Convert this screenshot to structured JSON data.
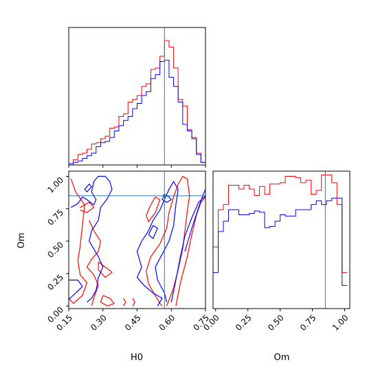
{
  "chart_data": {
    "type": "corner",
    "colors": {
      "red": "#ff0000",
      "blue": "#0000ff",
      "truth": "#1f77b4"
    },
    "truths": {
      "H0": 0.57,
      "Om": 0.85
    },
    "axes": {
      "H0": {
        "label": "H0",
        "range": [
          0.15,
          0.75
        ],
        "ticks": [
          "0.15",
          "0.30",
          "0.45",
          "0.60",
          "0.75"
        ],
        "tick_values": [
          0.15,
          0.3,
          0.45,
          0.6,
          0.75
        ]
      },
      "Om": {
        "label": "Om",
        "range": [
          -0.02,
          1.04
        ],
        "ticks": [
          "0.00",
          "0.25",
          "0.50",
          "0.75",
          "1.00"
        ],
        "tick_values": [
          0.0,
          0.25,
          0.5,
          0.75,
          1.0
        ]
      }
    },
    "hist_H0": {
      "bins": [
        0.15,
        0.17,
        0.19,
        0.21,
        0.23,
        0.25,
        0.27,
        0.29,
        0.31,
        0.33,
        0.35,
        0.37,
        0.39,
        0.41,
        0.43,
        0.45,
        0.47,
        0.49,
        0.51,
        0.53,
        0.55,
        0.57,
        0.59,
        0.61,
        0.63,
        0.65,
        0.67,
        0.69,
        0.71,
        0.73,
        0.75
      ],
      "red": [
        0.0,
        0.04,
        0.08,
        0.09,
        0.12,
        0.16,
        0.17,
        0.2,
        0.22,
        0.28,
        0.29,
        0.37,
        0.39,
        0.48,
        0.5,
        0.53,
        0.6,
        0.62,
        0.73,
        0.74,
        0.83,
        0.95,
        0.9,
        0.74,
        0.5,
        0.45,
        0.27,
        0.21,
        0.09,
        0.02
      ],
      "blue": [
        0.01,
        0.02,
        0.03,
        0.05,
        0.07,
        0.09,
        0.14,
        0.17,
        0.18,
        0.21,
        0.26,
        0.3,
        0.34,
        0.37,
        0.43,
        0.47,
        0.53,
        0.56,
        0.66,
        0.69,
        0.79,
        0.8,
        0.67,
        0.6,
        0.48,
        0.31,
        0.26,
        0.2,
        0.08,
        0.02
      ]
    },
    "hist_Om": {
      "bins": [
        -0.02,
        0.02,
        0.06,
        0.1,
        0.14,
        0.18,
        0.22,
        0.26,
        0.3,
        0.34,
        0.38,
        0.42,
        0.46,
        0.5,
        0.54,
        0.58,
        0.62,
        0.66,
        0.7,
        0.74,
        0.78,
        0.82,
        0.86,
        0.9,
        0.94,
        0.98,
        1.02
      ],
      "red": [
        0.48,
        0.77,
        0.81,
        0.96,
        0.96,
        0.93,
        0.96,
        0.93,
        0.88,
        0.95,
        0.89,
        0.97,
        0.97,
        0.98,
        1.03,
        1.03,
        1.02,
        0.98,
        1.0,
        0.89,
        0.92,
        1.04,
        1.04,
        0.98,
        0.81,
        0.28
      ],
      "blue": [
        0.28,
        0.6,
        0.68,
        0.77,
        0.77,
        0.73,
        0.73,
        0.74,
        0.76,
        0.75,
        0.63,
        0.64,
        0.68,
        0.73,
        0.72,
        0.72,
        0.77,
        0.77,
        0.77,
        0.81,
        0.84,
        0.81,
        0.84,
        0.86,
        0.86,
        0.18
      ]
    },
    "contours": {
      "red": [
        [
          [
            0.16,
            0.98
          ],
          [
            0.18,
            0.88
          ],
          [
            0.22,
            0.78
          ],
          [
            0.21,
            0.62
          ],
          [
            0.2,
            0.46
          ],
          [
            0.19,
            0.35
          ],
          [
            0.2,
            0.24
          ],
          [
            0.23,
            0.18
          ],
          [
            0.21,
            0.08
          ],
          [
            0.17,
            0.02
          ],
          [
            0.15,
            0.06
          ]
        ],
        [
          [
            0.2,
            0.74
          ],
          [
            0.23,
            0.72
          ],
          [
            0.26,
            0.76
          ],
          [
            0.24,
            0.8
          ],
          [
            0.2,
            0.76
          ]
        ],
        [
          [
            0.24,
            0.66
          ],
          [
            0.26,
            0.58
          ],
          [
            0.29,
            0.5
          ],
          [
            0.28,
            0.42
          ],
          [
            0.25,
            0.36
          ],
          [
            0.23,
            0.3
          ],
          [
            0.26,
            0.24
          ],
          [
            0.28,
            0.16
          ],
          [
            0.26,
            0.06
          ],
          [
            0.25,
            0.0
          ]
        ],
        [
          [
            0.3,
            0.08
          ],
          [
            0.33,
            0.06
          ],
          [
            0.35,
            0.02
          ],
          [
            0.32,
            0.0
          ],
          [
            0.29,
            0.03
          ],
          [
            0.3,
            0.08
          ]
        ],
        [
          [
            0.28,
            0.34
          ],
          [
            0.31,
            0.3
          ],
          [
            0.34,
            0.26
          ],
          [
            0.31,
            0.22
          ],
          [
            0.28,
            0.28
          ],
          [
            0.28,
            0.34
          ]
        ],
        [
          [
            0.39,
            0.06
          ],
          [
            0.4,
            0.03
          ],
          [
            0.39,
            0.0
          ]
        ],
        [
          [
            0.43,
            0.06
          ],
          [
            0.44,
            0.03
          ],
          [
            0.43,
            0.0
          ]
        ],
        [
          [
            0.62,
            0.0
          ],
          [
            0.64,
            0.18
          ],
          [
            0.67,
            0.38
          ],
          [
            0.69,
            0.55
          ],
          [
            0.71,
            0.7
          ],
          [
            0.73,
            0.8
          ],
          [
            0.75,
            0.84
          ]
        ],
        [
          [
            0.58,
            0.0
          ],
          [
            0.61,
            0.14
          ],
          [
            0.63,
            0.28
          ],
          [
            0.65,
            0.44
          ],
          [
            0.66,
            0.58
          ],
          [
            0.67,
            0.73
          ],
          [
            0.68,
            0.85
          ],
          [
            0.67,
            0.98
          ],
          [
            0.65,
            1.0
          ],
          [
            0.63,
            0.94
          ],
          [
            0.61,
            0.84
          ],
          [
            0.59,
            0.72
          ],
          [
            0.58,
            0.6
          ],
          [
            0.55,
            0.48
          ],
          [
            0.51,
            0.38
          ],
          [
            0.49,
            0.27
          ],
          [
            0.5,
            0.17
          ],
          [
            0.53,
            0.08
          ],
          [
            0.55,
            0.02
          ],
          [
            0.56,
            0.0
          ]
        ],
        [
          [
            0.49,
            0.7
          ],
          [
            0.51,
            0.78
          ],
          [
            0.53,
            0.84
          ],
          [
            0.55,
            0.82
          ],
          [
            0.53,
            0.72
          ],
          [
            0.5,
            0.65
          ],
          [
            0.49,
            0.7
          ]
        ]
      ],
      "blue": [
        [
          [
            0.15,
            0.05
          ],
          [
            0.18,
            0.1
          ],
          [
            0.21,
            0.15
          ],
          [
            0.19,
            0.2
          ],
          [
            0.15,
            0.2
          ]
        ],
        [
          [
            0.16,
            0.76
          ],
          [
            0.19,
            0.79
          ],
          [
            0.21,
            0.84
          ],
          [
            0.23,
            0.82
          ],
          [
            0.26,
            0.78
          ],
          [
            0.27,
            0.82
          ],
          [
            0.25,
            0.88
          ],
          [
            0.26,
            0.96
          ],
          [
            0.28,
            1.0
          ],
          [
            0.31,
            1.0
          ],
          [
            0.33,
            0.96
          ],
          [
            0.34,
            0.9
          ],
          [
            0.32,
            0.83
          ],
          [
            0.29,
            0.76
          ],
          [
            0.28,
            0.66
          ],
          [
            0.25,
            0.58
          ],
          [
            0.24,
            0.5
          ],
          [
            0.26,
            0.44
          ],
          [
            0.28,
            0.38
          ],
          [
            0.3,
            0.3
          ],
          [
            0.28,
            0.22
          ],
          [
            0.27,
            0.12
          ],
          [
            0.25,
            0.06
          ],
          [
            0.23,
            0.03
          ]
        ],
        [
          [
            0.22,
            0.9
          ],
          [
            0.24,
            0.94
          ],
          [
            0.25,
            0.92
          ],
          [
            0.23,
            0.88
          ],
          [
            0.22,
            0.9
          ]
        ],
        [
          [
            0.57,
            0.86
          ],
          [
            0.59,
            0.84
          ],
          [
            0.6,
            0.82
          ],
          [
            0.58,
            0.8
          ],
          [
            0.56,
            0.82
          ],
          [
            0.57,
            0.86
          ]
        ],
        [
          [
            0.6,
            0.03
          ],
          [
            0.62,
            0.2
          ],
          [
            0.64,
            0.38
          ],
          [
            0.66,
            0.54
          ],
          [
            0.69,
            0.68
          ],
          [
            0.72,
            0.8
          ],
          [
            0.75,
            0.85
          ]
        ],
        [
          [
            0.54,
            0.0
          ],
          [
            0.56,
            0.06
          ],
          [
            0.52,
            0.1
          ],
          [
            0.48,
            0.16
          ],
          [
            0.45,
            0.22
          ],
          [
            0.47,
            0.3
          ],
          [
            0.45,
            0.42
          ],
          [
            0.47,
            0.5
          ],
          [
            0.5,
            0.58
          ],
          [
            0.52,
            0.66
          ],
          [
            0.55,
            0.74
          ],
          [
            0.57,
            0.82
          ],
          [
            0.59,
            0.9
          ],
          [
            0.61,
            0.96
          ],
          [
            0.63,
            0.9
          ],
          [
            0.62,
            0.78
          ],
          [
            0.61,
            0.62
          ],
          [
            0.59,
            0.5
          ],
          [
            0.56,
            0.4
          ],
          [
            0.53,
            0.3
          ],
          [
            0.54,
            0.2
          ],
          [
            0.57,
            0.1
          ],
          [
            0.58,
            0.03
          ]
        ],
        [
          [
            0.66,
            0.42
          ],
          [
            0.69,
            0.6
          ],
          [
            0.72,
            0.76
          ],
          [
            0.74,
            0.86
          ],
          [
            0.75,
            0.9
          ]
        ],
        [
          [
            0.5,
            0.55
          ],
          [
            0.52,
            0.62
          ],
          [
            0.54,
            0.6
          ],
          [
            0.52,
            0.52
          ],
          [
            0.5,
            0.55
          ]
        ]
      ]
    }
  }
}
